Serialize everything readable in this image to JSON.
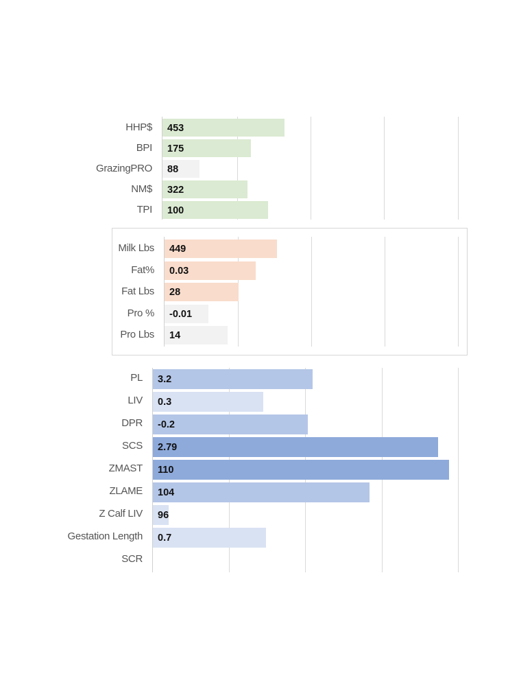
{
  "chart_data": [
    {
      "type": "bar",
      "orientation": "horizontal",
      "categories": [
        "HHP$",
        "BPI",
        "GrazingPRO",
        "NM$",
        "TPI"
      ],
      "values": [
        453,
        175,
        88,
        322,
        100
      ],
      "value_labels": [
        "453",
        "175",
        "88",
        "322",
        "100"
      ],
      "colors": [
        "#dbead2",
        "#dbead2",
        "#f2f2f2",
        "#dbead2",
        "#dbead2"
      ],
      "grid": true
    },
    {
      "type": "bar",
      "orientation": "horizontal",
      "categories": [
        "Milk Lbs",
        "Fat%",
        "Fat Lbs",
        "Pro %",
        "Pro Lbs"
      ],
      "values": [
        449,
        0.03,
        28,
        -0.01,
        14
      ],
      "value_labels": [
        "449",
        "0.03",
        "28",
        "-0.01",
        "14"
      ],
      "colors": [
        "#f9dccc",
        "#f9dccc",
        "#f9dccc",
        "#f2f2f2",
        "#f2f2f2"
      ],
      "grid": true,
      "boxed": true
    },
    {
      "type": "bar",
      "orientation": "horizontal",
      "categories": [
        "PL",
        "LIV",
        "DPR",
        "SCS",
        "ZMAST",
        "ZLAME",
        "Z Calf LIV",
        "Gestation Length",
        "SCR"
      ],
      "values": [
        3.2,
        0.3,
        -0.2,
        2.79,
        110,
        104,
        96,
        0.7,
        null
      ],
      "value_labels": [
        "3.2",
        "0.3",
        "-0.2",
        "2.79",
        "110",
        "104",
        "96",
        "0.7",
        ""
      ],
      "colors": [
        "#b4c6e7",
        "#d9e2f3",
        "#b4c6e7",
        "#8eaadb",
        "#8eaadb",
        "#b4c6e7",
        "#d9e2f3",
        "#d9e2f3",
        "#d9e2f3"
      ],
      "grid": true
    }
  ]
}
